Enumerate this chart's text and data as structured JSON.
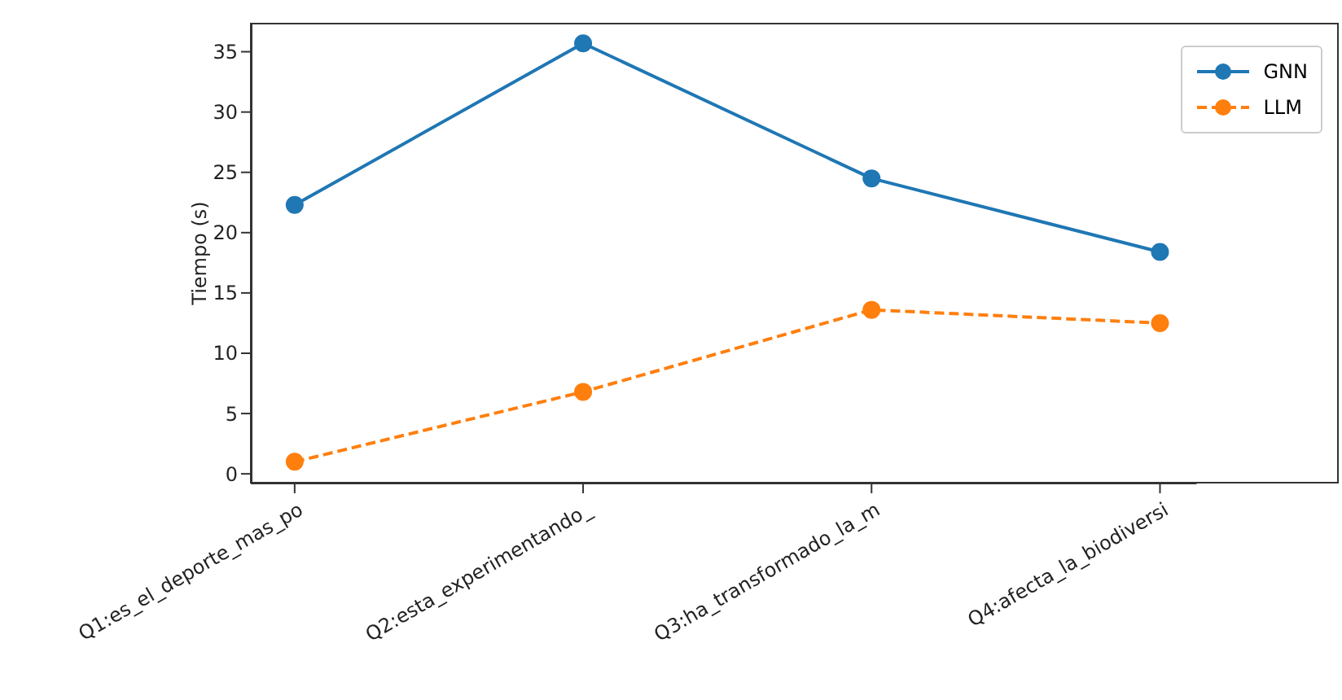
{
  "chart_data": {
    "type": "line",
    "ylabel": "Tiempo (s)",
    "categories": [
      "Q1:es_el_deporte_mas_po",
      "Q2:esta_experimentando_",
      "Q3:ha_transformado_la_m",
      "Q4:afecta_la_biodiversi"
    ],
    "series": [
      {
        "name": "GNN",
        "color": "#1f77b4",
        "values": [
          22.3,
          35.7,
          24.5,
          18.4
        ],
        "line_style": "solid"
      },
      {
        "name": "LLM",
        "color": "#ff7f0e",
        "values": [
          1.0,
          6.8,
          13.6,
          12.5
        ],
        "line_style": "dashed"
      }
    ],
    "ylim": [
      -0.8,
      37.4
    ],
    "yticks": [
      0,
      5,
      10,
      15,
      20,
      25,
      30,
      35
    ],
    "marker": "circle",
    "grid": false,
    "legend": "top right"
  }
}
